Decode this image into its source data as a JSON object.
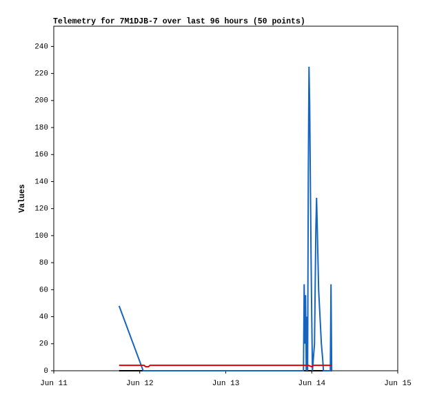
{
  "chart_data": {
    "type": "line",
    "title": "Telemetry for 7M1DJB-7 over last 96 hours (50 points)",
    "y_label": "Values",
    "xlim": [
      0,
      4
    ],
    "xticks": [
      {
        "value": 0,
        "label": "Jun 11"
      },
      {
        "value": 1,
        "label": "Jun 12"
      },
      {
        "value": 2,
        "label": "Jun 13"
      },
      {
        "value": 3,
        "label": "Jun 14"
      },
      {
        "value": 4,
        "label": "Jun 15"
      }
    ],
    "ylim": [
      0,
      255
    ],
    "yticks": [
      0,
      20,
      40,
      60,
      80,
      100,
      120,
      140,
      160,
      180,
      200,
      220,
      240
    ],
    "grid": false,
    "series": [
      {
        "color": "#000000",
        "x": [
          0.76,
          3.232
        ],
        "values": [
          0,
          0
        ]
      },
      {
        "color": "#1565c0",
        "x": [
          0.76,
          1.04,
          2.904,
          2.912,
          2.92,
          2.928,
          2.936,
          2.944,
          2.952,
          2.96,
          2.968,
          2.976,
          2.984,
          2.992,
          3.0,
          3.008,
          3.032,
          3.048,
          3.056,
          3.064,
          3.08,
          3.096,
          3.112,
          3.128,
          3.136,
          3.216,
          3.224,
          3.232
        ],
        "values": [
          48,
          0,
          0,
          64,
          20,
          56,
          0,
          40,
          0,
          145,
          225,
          197,
          140,
          85,
          40,
          0,
          20,
          105,
          128,
          107,
          60,
          40,
          20,
          8,
          0,
          0,
          64,
          0
        ]
      },
      {
        "color": "#e00000",
        "x": [
          0.76,
          1.05,
          1.07,
          1.1,
          1.12,
          2.96,
          3.0,
          3.02,
          3.232
        ],
        "values": [
          4,
          4,
          3,
          3,
          4,
          4,
          3,
          4,
          4
        ]
      }
    ]
  }
}
